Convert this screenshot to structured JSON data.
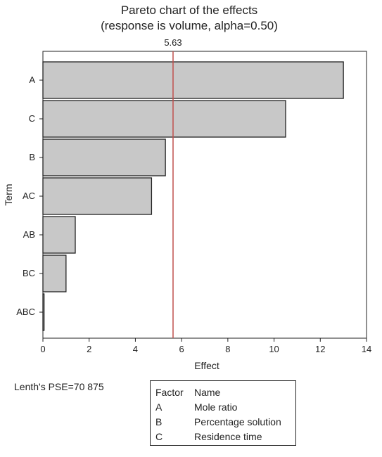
{
  "chart_data": {
    "type": "bar",
    "orientation": "horizontal",
    "title": "Pareto chart of the effects",
    "subtitle": "(response is volume, alpha=0.50)",
    "xlabel": "Effect",
    "ylabel": "Term",
    "categories": [
      "A",
      "C",
      "B",
      "AC",
      "AB",
      "BC",
      "ABC"
    ],
    "values": [
      13.0,
      10.5,
      5.3,
      4.7,
      1.4,
      1.0,
      0.05
    ],
    "xlim": [
      0,
      14
    ],
    "xticks": [
      0,
      2,
      4,
      6,
      8,
      10,
      12,
      14
    ],
    "reference_line": {
      "value": 5.63,
      "label": "5.63",
      "color": "#c0504d"
    },
    "bar_color": "#c8c8c8",
    "grid": false
  },
  "notes": {
    "pse": "Lenth's PSE=70 875"
  },
  "factor_table": {
    "header": [
      "Factor",
      "Name"
    ],
    "rows": [
      [
        "A",
        "Mole ratio"
      ],
      [
        "B",
        "Percentage solution"
      ],
      [
        "C",
        "Residence time"
      ]
    ]
  }
}
